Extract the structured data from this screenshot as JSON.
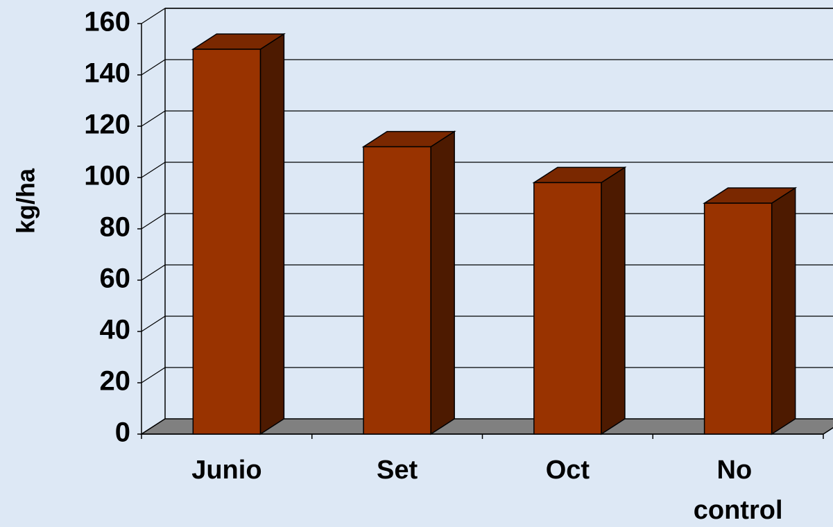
{
  "chart_data": {
    "type": "bar3d",
    "y_label": "kg/ha",
    "categories": [
      "Junio",
      "Set",
      "Oct",
      "No control"
    ],
    "values": [
      150,
      112,
      98,
      90
    ],
    "color": "#993300",
    "side_color": "#4d1a00",
    "top_color": "#7a2800",
    "floor_color": "#808080",
    "ylim": [
      0,
      160
    ],
    "yticks": [
      0,
      20,
      40,
      60,
      80,
      100,
      120,
      140,
      160
    ],
    "grid": true
  }
}
